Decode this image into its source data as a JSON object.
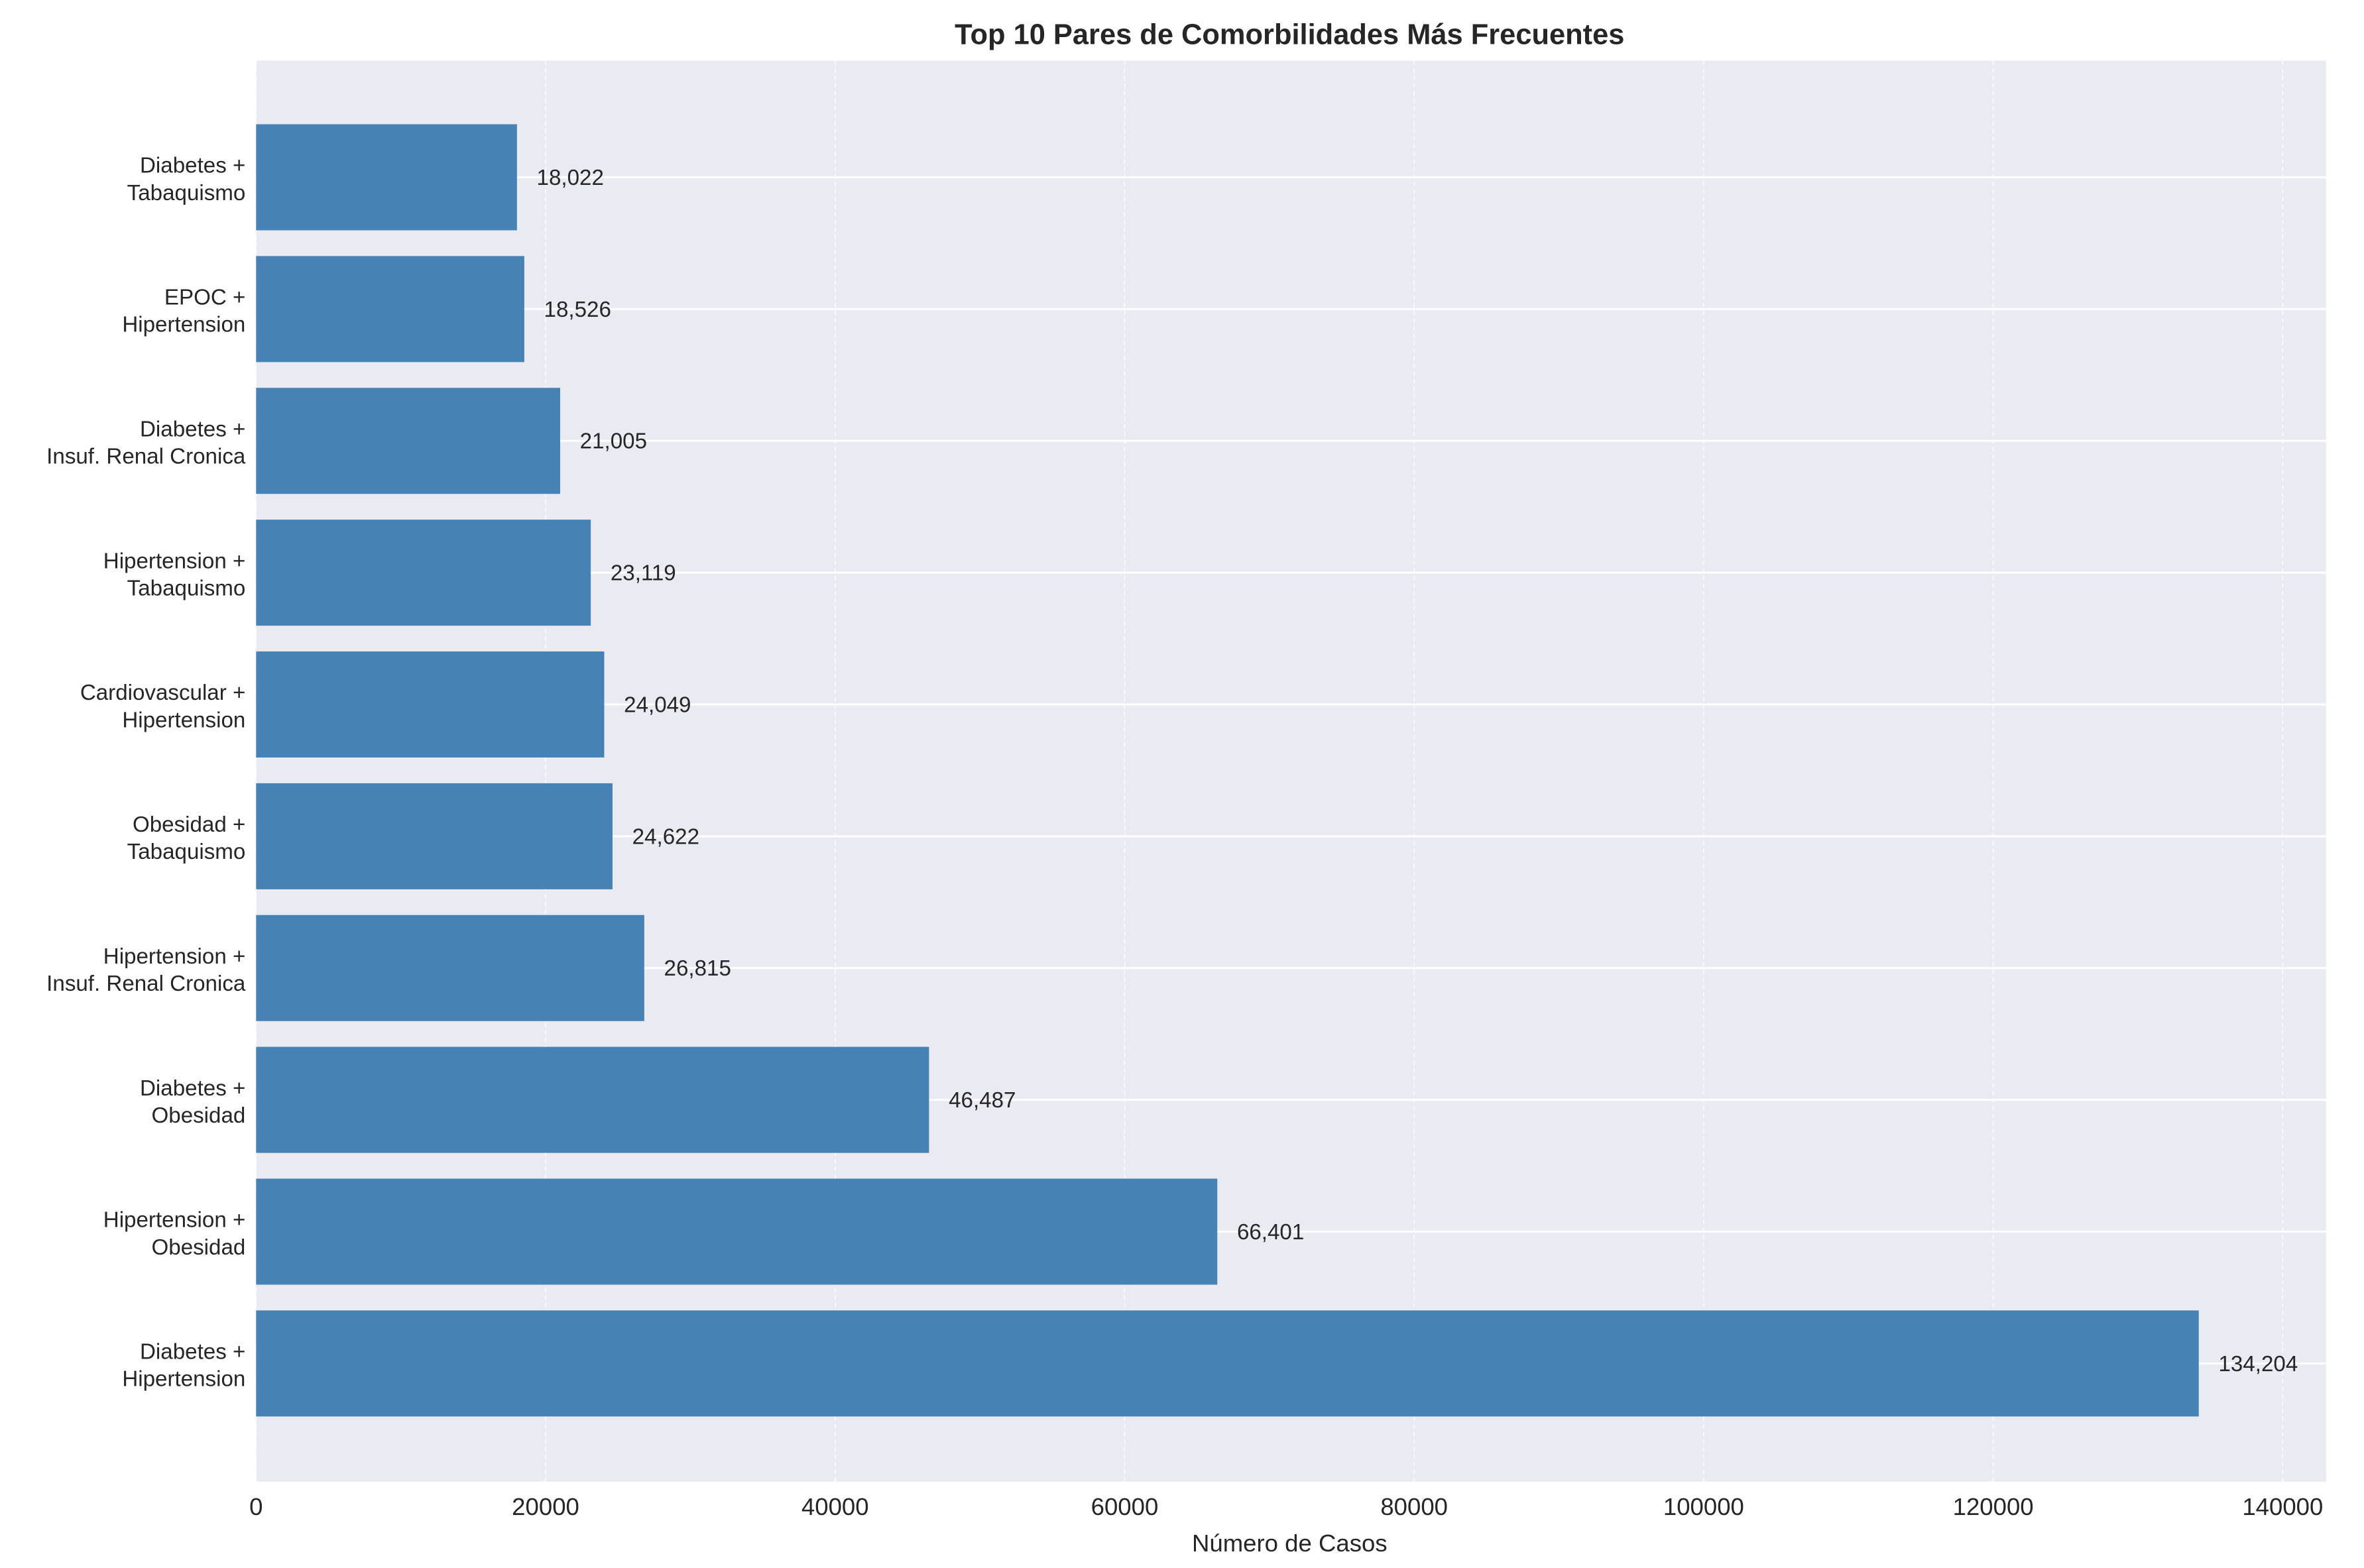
{
  "chart_data": {
    "type": "bar",
    "orientation": "horizontal",
    "title": "Top 10 Pares de Comorbilidades Más Frecuentes",
    "xlabel": "Número de Casos",
    "ylabel": "",
    "xlim": [
      0,
      143000
    ],
    "xticks": [
      0,
      20000,
      40000,
      60000,
      80000,
      100000,
      120000,
      140000
    ],
    "xtick_labels": [
      "0",
      "20000",
      "40000",
      "60000",
      "80000",
      "100000",
      "120000",
      "140000"
    ],
    "grid": true,
    "bar_color": "#4682b4",
    "background_color": "#eaeaf2",
    "categories": [
      [
        "Diabetes +",
        "Hipertension"
      ],
      [
        "Hipertension +",
        "Obesidad"
      ],
      [
        "Diabetes +",
        "Obesidad"
      ],
      [
        "Hipertension +",
        "Insuf. Renal Cronica"
      ],
      [
        "Obesidad +",
        "Tabaquismo"
      ],
      [
        "Cardiovascular +",
        "Hipertension"
      ],
      [
        "Hipertension +",
        "Tabaquismo"
      ],
      [
        "Diabetes +",
        "Insuf. Renal Cronica"
      ],
      [
        "EPOC +",
        "Hipertension"
      ],
      [
        "Diabetes +",
        "Tabaquismo"
      ]
    ],
    "values": [
      134204,
      66401,
      46487,
      26815,
      24622,
      24049,
      23119,
      21005,
      18526,
      18022
    ],
    "data_labels": [
      "134,204",
      "66,401",
      "46,487",
      "26,815",
      "24,622",
      "24,049",
      "23,119",
      "21,005",
      "18,526",
      "18,022"
    ]
  }
}
